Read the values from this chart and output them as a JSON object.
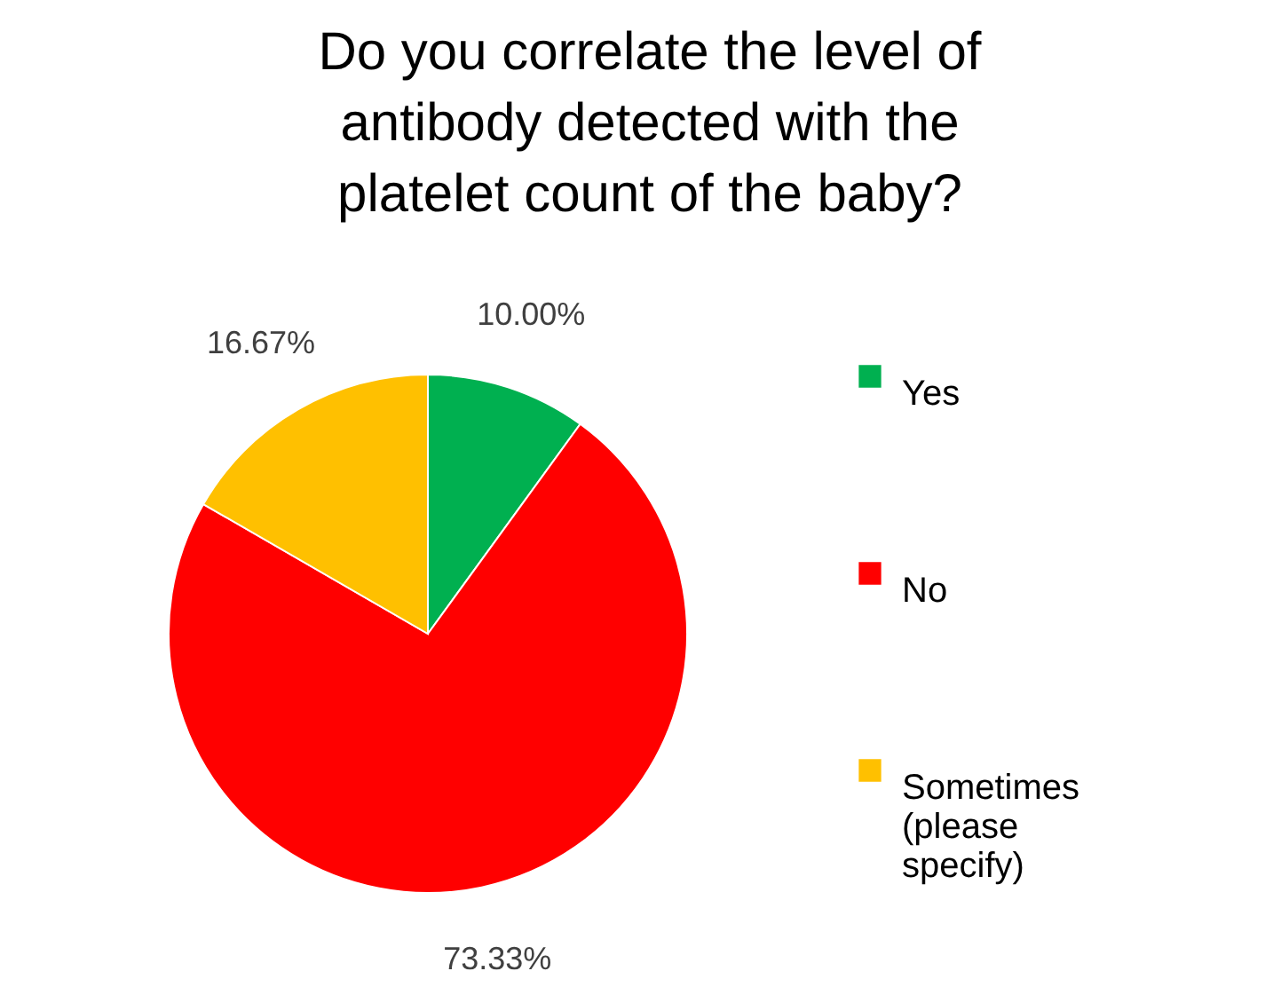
{
  "chart_data": {
    "type": "pie",
    "title": "Do you correlate the level of antibody detected with the platelet count of the baby?",
    "categories": [
      "Yes",
      "No",
      "Sometimes (please specify)"
    ],
    "values": [
      10.0,
      73.33,
      16.67
    ],
    "colors": [
      "#00b050",
      "#ff0000",
      "#ffc000"
    ],
    "value_labels": [
      "10.00%",
      "73.33%",
      "16.67%"
    ],
    "legend": "right"
  }
}
